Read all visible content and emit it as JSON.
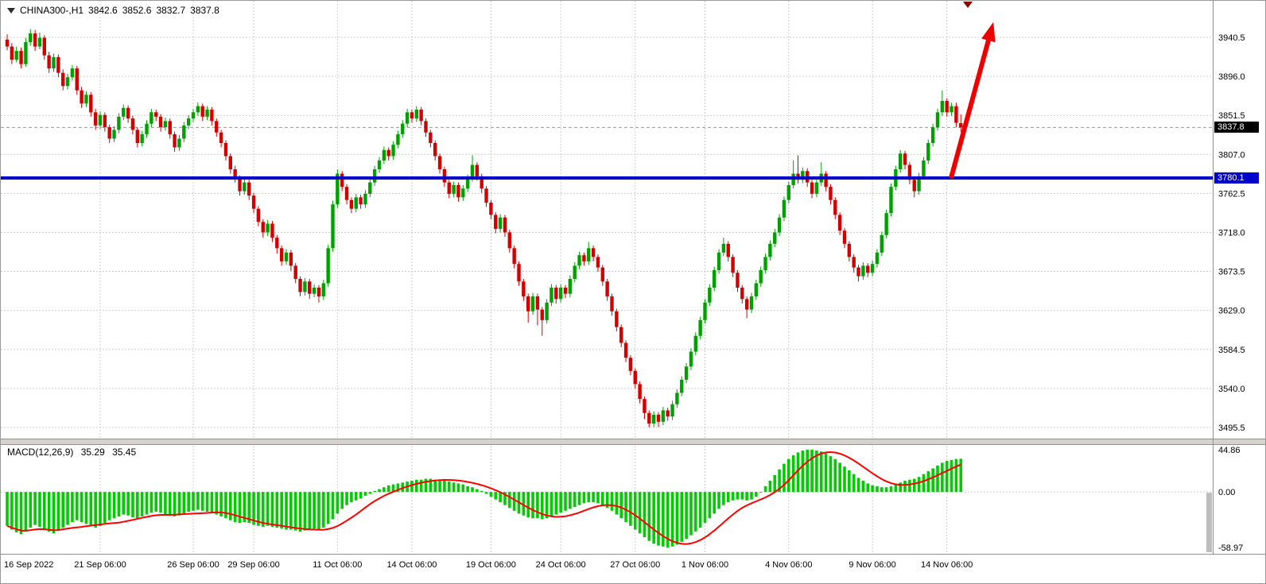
{
  "header": {
    "title": "CHINA300-,H1",
    "open": "3842.6",
    "high": "3852.6",
    "low": "3832.7",
    "close": "3837.8"
  },
  "indicator_label": {
    "name": "MACD(12,26,9)",
    "macd_value": "35.29",
    "signal_value": "35.45"
  },
  "tags": {
    "current_price": "3837.8",
    "support_price": "3780.1"
  },
  "colors": {
    "bull": "#00A000",
    "bear": "#D40000",
    "histogram": "#00CC00",
    "signal_line": "#FF0000",
    "support_line": "#0000CD",
    "arrow": "#EE0000",
    "grid": "#CDCDCD",
    "axis_line": "#909090",
    "axis_text": "#000000",
    "last_price_line": "#9a9a9a",
    "tag_current_bg": "#000000",
    "tag_support_bg": "#0000CD",
    "separator": "#D6D3CE",
    "marker": "#8B0000",
    "scrollbar": "#BDBDBD"
  },
  "chart_data": {
    "type": "candlestick",
    "title": "CHINA300-,H1",
    "timeframe": "H1",
    "price_axis_labels": [
      "3940.5",
      "3896.0",
      "3851.5",
      "3807.0",
      "3762.5",
      "3718.0",
      "3673.5",
      "3629.0",
      "3584.5",
      "3540.0",
      "3495.5"
    ],
    "time_axis_labels": [
      {
        "i": 0,
        "label": "16 Sep 2022"
      },
      {
        "i": 20,
        "label": "21 Sep 06:00"
      },
      {
        "i": 40,
        "label": "26 Sep 06:00"
      },
      {
        "i": 53,
        "label": "29 Sep 06:00"
      },
      {
        "i": 71,
        "label": "11 Oct 06:00"
      },
      {
        "i": 87,
        "label": "14 Oct 06:00"
      },
      {
        "i": 104,
        "label": "19 Oct 06:00"
      },
      {
        "i": 119,
        "label": "24 Oct 06:00"
      },
      {
        "i": 135,
        "label": "27 Oct 06:00"
      },
      {
        "i": 150,
        "label": "1 Nov 06:00"
      },
      {
        "i": 168,
        "label": "4 Nov 06:00"
      },
      {
        "i": 186,
        "label": "9 Nov 06:00"
      },
      {
        "i": 202,
        "label": "14 Nov 06:00"
      }
    ],
    "ohlc": [
      [
        3938,
        3944,
        3926,
        3930
      ],
      [
        3930,
        3934,
        3910,
        3915
      ],
      [
        3915,
        3930,
        3912,
        3925
      ],
      [
        3925,
        3929,
        3905,
        3910
      ],
      [
        3910,
        3940,
        3907,
        3935
      ],
      [
        3935,
        3950,
        3931,
        3945
      ],
      [
        3945,
        3949,
        3925,
        3930
      ],
      [
        3930,
        3946,
        3927,
        3940
      ],
      [
        3940,
        3943,
        3915,
        3920
      ],
      [
        3920,
        3924,
        3900,
        3905
      ],
      [
        3905,
        3922,
        3901,
        3918
      ],
      [
        3918,
        3921,
        3895,
        3900
      ],
      [
        3900,
        3904,
        3880,
        3885
      ],
      [
        3885,
        3899,
        3881,
        3895
      ],
      [
        3895,
        3909,
        3891,
        3905
      ],
      [
        3905,
        3908,
        3875,
        3880
      ],
      [
        3880,
        3884,
        3860,
        3865
      ],
      [
        3865,
        3879,
        3861,
        3875
      ],
      [
        3875,
        3878,
        3850,
        3855
      ],
      [
        3855,
        3859,
        3835,
        3840
      ],
      [
        3840,
        3856,
        3836,
        3852
      ],
      [
        3852,
        3855,
        3833,
        3838
      ],
      [
        3838,
        3841,
        3820,
        3825
      ],
      [
        3825,
        3839,
        3821,
        3835
      ],
      [
        3835,
        3854,
        3831,
        3850
      ],
      [
        3850,
        3864,
        3846,
        3860
      ],
      [
        3860,
        3863,
        3843,
        3848
      ],
      [
        3848,
        3851,
        3830,
        3835
      ],
      [
        3835,
        3838,
        3815,
        3820
      ],
      [
        3820,
        3834,
        3816,
        3830
      ],
      [
        3830,
        3846,
        3826,
        3842
      ],
      [
        3842,
        3859,
        3838,
        3855
      ],
      [
        3855,
        3858,
        3845,
        3850
      ],
      [
        3850,
        3853,
        3833,
        3838
      ],
      [
        3838,
        3849,
        3834,
        3845
      ],
      [
        3845,
        3848,
        3825,
        3830
      ],
      [
        3830,
        3833,
        3810,
        3815
      ],
      [
        3815,
        3829,
        3811,
        3825
      ],
      [
        3825,
        3844,
        3821,
        3840
      ],
      [
        3840,
        3852,
        3836,
        3848
      ],
      [
        3848,
        3859,
        3844,
        3855
      ],
      [
        3855,
        3866,
        3851,
        3862
      ],
      [
        3862,
        3865,
        3845,
        3850
      ],
      [
        3850,
        3862,
        3846,
        3858
      ],
      [
        3858,
        3861,
        3840,
        3845
      ],
      [
        3845,
        3848,
        3827,
        3832
      ],
      [
        3832,
        3835,
        3815,
        3820
      ],
      [
        3820,
        3823,
        3800,
        3805
      ],
      [
        3805,
        3808,
        3785,
        3790
      ],
      [
        3790,
        3794,
        3775,
        3780
      ],
      [
        3780,
        3783,
        3760,
        3765
      ],
      [
        3765,
        3779,
        3761,
        3775
      ],
      [
        3775,
        3778,
        3755,
        3760
      ],
      [
        3760,
        3763,
        3740,
        3745
      ],
      [
        3745,
        3748,
        3725,
        3730
      ],
      [
        3730,
        3733,
        3712,
        3718
      ],
      [
        3718,
        3732,
        3714,
        3728
      ],
      [
        3728,
        3731,
        3707,
        3712
      ],
      [
        3712,
        3715,
        3694,
        3700
      ],
      [
        3700,
        3703,
        3680,
        3685
      ],
      [
        3685,
        3699,
        3681,
        3695
      ],
      [
        3695,
        3698,
        3674,
        3680
      ],
      [
        3680,
        3683,
        3660,
        3665
      ],
      [
        3665,
        3668,
        3645,
        3650
      ],
      [
        3650,
        3666,
        3646,
        3662
      ],
      [
        3662,
        3665,
        3642,
        3648
      ],
      [
        3648,
        3659,
        3644,
        3655
      ],
      [
        3655,
        3658,
        3638,
        3645
      ],
      [
        3645,
        3664,
        3641,
        3660
      ],
      [
        3660,
        3704,
        3656,
        3700
      ],
      [
        3700,
        3754,
        3696,
        3750
      ],
      [
        3750,
        3790,
        3746,
        3785
      ],
      [
        3785,
        3788,
        3765,
        3770
      ],
      [
        3770,
        3773,
        3750,
        3755
      ],
      [
        3755,
        3758,
        3740,
        3745
      ],
      [
        3745,
        3762,
        3741,
        3758
      ],
      [
        3758,
        3761,
        3745,
        3750
      ],
      [
        3750,
        3766,
        3746,
        3762
      ],
      [
        3762,
        3779,
        3758,
        3775
      ],
      [
        3775,
        3794,
        3771,
        3790
      ],
      [
        3790,
        3804,
        3786,
        3800
      ],
      [
        3800,
        3816,
        3796,
        3812
      ],
      [
        3812,
        3815,
        3800,
        3805
      ],
      [
        3805,
        3822,
        3801,
        3818
      ],
      [
        3818,
        3834,
        3814,
        3830
      ],
      [
        3830,
        3846,
        3826,
        3842
      ],
      [
        3842,
        3859,
        3838,
        3855
      ],
      [
        3855,
        3858,
        3843,
        3848
      ],
      [
        3848,
        3862,
        3844,
        3858
      ],
      [
        3858,
        3861,
        3840,
        3845
      ],
      [
        3845,
        3848,
        3827,
        3832
      ],
      [
        3832,
        3835,
        3815,
        3820
      ],
      [
        3820,
        3823,
        3800,
        3805
      ],
      [
        3805,
        3808,
        3785,
        3790
      ],
      [
        3790,
        3793,
        3770,
        3775
      ],
      [
        3775,
        3778,
        3757,
        3762
      ],
      [
        3762,
        3776,
        3758,
        3772
      ],
      [
        3772,
        3775,
        3753,
        3758
      ],
      [
        3758,
        3772,
        3754,
        3768
      ],
      [
        3768,
        3784,
        3764,
        3780
      ],
      [
        3780,
        3806,
        3776,
        3795
      ],
      [
        3795,
        3798,
        3777,
        3782
      ],
      [
        3782,
        3785,
        3763,
        3768
      ],
      [
        3768,
        3771,
        3747,
        3752
      ],
      [
        3752,
        3755,
        3733,
        3738
      ],
      [
        3738,
        3741,
        3717,
        3722
      ],
      [
        3722,
        3739,
        3718,
        3735
      ],
      [
        3735,
        3738,
        3713,
        3718
      ],
      [
        3718,
        3721,
        3695,
        3700
      ],
      [
        3700,
        3703,
        3677,
        3682
      ],
      [
        3682,
        3685,
        3657,
        3662
      ],
      [
        3662,
        3665,
        3640,
        3645
      ],
      [
        3645,
        3648,
        3615,
        3628
      ],
      [
        3628,
        3649,
        3624,
        3645
      ],
      [
        3645,
        3648,
        3612,
        3630
      ],
      [
        3630,
        3633,
        3600,
        3618
      ],
      [
        3618,
        3642,
        3614,
        3638
      ],
      [
        3638,
        3659,
        3634,
        3655
      ],
      [
        3655,
        3658,
        3637,
        3642
      ],
      [
        3642,
        3659,
        3638,
        3655
      ],
      [
        3655,
        3658,
        3643,
        3648
      ],
      [
        3648,
        3669,
        3644,
        3665
      ],
      [
        3665,
        3684,
        3661,
        3680
      ],
      [
        3680,
        3696,
        3676,
        3692
      ],
      [
        3692,
        3695,
        3680,
        3685
      ],
      [
        3685,
        3707,
        3681,
        3700
      ],
      [
        3700,
        3703,
        3685,
        3690
      ],
      [
        3690,
        3693,
        3673,
        3678
      ],
      [
        3678,
        3681,
        3657,
        3662
      ],
      [
        3662,
        3665,
        3640,
        3645
      ],
      [
        3645,
        3648,
        3623,
        3628
      ],
      [
        3628,
        3631,
        3605,
        3610
      ],
      [
        3610,
        3613,
        3587,
        3592
      ],
      [
        3592,
        3595,
        3570,
        3575
      ],
      [
        3575,
        3578,
        3555,
        3560
      ],
      [
        3560,
        3563,
        3540,
        3545
      ],
      [
        3545,
        3548,
        3523,
        3528
      ],
      [
        3528,
        3531,
        3505,
        3512
      ],
      [
        3512,
        3515,
        3495.5,
        3500
      ],
      [
        3500,
        3514,
        3496,
        3510
      ],
      [
        3510,
        3513,
        3496,
        3502
      ],
      [
        3502,
        3519,
        3498,
        3515
      ],
      [
        3515,
        3518,
        3503,
        3508
      ],
      [
        3508,
        3526,
        3504,
        3522
      ],
      [
        3522,
        3539,
        3518,
        3535
      ],
      [
        3535,
        3554,
        3531,
        3550
      ],
      [
        3550,
        3569,
        3546,
        3565
      ],
      [
        3565,
        3586,
        3561,
        3582
      ],
      [
        3582,
        3604,
        3578,
        3600
      ],
      [
        3600,
        3622,
        3596,
        3618
      ],
      [
        3618,
        3642,
        3614,
        3638
      ],
      [
        3638,
        3659,
        3634,
        3655
      ],
      [
        3655,
        3679,
        3651,
        3675
      ],
      [
        3675,
        3699,
        3671,
        3695
      ],
      [
        3695,
        3712,
        3691,
        3705
      ],
      [
        3705,
        3708,
        3685,
        3690
      ],
      [
        3690,
        3693,
        3667,
        3672
      ],
      [
        3672,
        3675,
        3650,
        3655
      ],
      [
        3655,
        3658,
        3637,
        3642
      ],
      [
        3642,
        3645,
        3620,
        3630
      ],
      [
        3630,
        3649,
        3626,
        3645
      ],
      [
        3645,
        3664,
        3641,
        3660
      ],
      [
        3660,
        3679,
        3656,
        3675
      ],
      [
        3675,
        3694,
        3671,
        3690
      ],
      [
        3690,
        3709,
        3686,
        3705
      ],
      [
        3705,
        3722,
        3701,
        3718
      ],
      [
        3718,
        3739,
        3714,
        3735
      ],
      [
        3735,
        3759,
        3731,
        3755
      ],
      [
        3755,
        3776,
        3751,
        3772
      ],
      [
        3772,
        3800,
        3768,
        3785
      ],
      [
        3785,
        3806,
        3774,
        3778
      ],
      [
        3778,
        3792,
        3774,
        3788
      ],
      [
        3788,
        3791,
        3770,
        3775
      ],
      [
        3775,
        3778,
        3757,
        3762
      ],
      [
        3762,
        3779,
        3758,
        3775
      ],
      [
        3775,
        3798,
        3771,
        3785
      ],
      [
        3785,
        3788,
        3765,
        3770
      ],
      [
        3770,
        3773,
        3750,
        3755
      ],
      [
        3755,
        3758,
        3733,
        3738
      ],
      [
        3738,
        3741,
        3715,
        3720
      ],
      [
        3720,
        3723,
        3700,
        3705
      ],
      [
        3705,
        3708,
        3685,
        3690
      ],
      [
        3690,
        3693,
        3672,
        3678
      ],
      [
        3678,
        3681,
        3662,
        3668
      ],
      [
        3668,
        3684,
        3664,
        3680
      ],
      [
        3680,
        3683,
        3667,
        3672
      ],
      [
        3672,
        3686,
        3668,
        3682
      ],
      [
        3682,
        3699,
        3678,
        3695
      ],
      [
        3695,
        3719,
        3691,
        3715
      ],
      [
        3715,
        3744,
        3711,
        3740
      ],
      [
        3740,
        3774,
        3736,
        3770
      ],
      [
        3770,
        3794,
        3766,
        3790
      ],
      [
        3790,
        3812,
        3786,
        3808
      ],
      [
        3808,
        3811,
        3790,
        3795
      ],
      [
        3795,
        3798,
        3773,
        3778
      ],
      [
        3778,
        3781,
        3758,
        3765
      ],
      [
        3765,
        3786,
        3761,
        3782
      ],
      [
        3782,
        3804,
        3778,
        3800
      ],
      [
        3800,
        3824,
        3796,
        3820
      ],
      [
        3820,
        3842,
        3816,
        3838
      ],
      [
        3838,
        3859,
        3834,
        3855
      ],
      [
        3855,
        3880,
        3851,
        3868
      ],
      [
        3868,
        3871,
        3850,
        3855
      ],
      [
        3855,
        3866,
        3851,
        3862
      ],
      [
        3862,
        3866,
        3838,
        3843
      ],
      [
        3842.6,
        3852.6,
        3832.7,
        3837.8
      ]
    ],
    "macd": {
      "type": "bar+line",
      "label": "MACD(12,26,9)",
      "axis_labels": [
        "44.86",
        "0.00",
        "-58.97"
      ],
      "signal_sma_period": 9,
      "current_macd": 35.29,
      "current_signal": 35.45,
      "histogram": [
        -36,
        -40,
        -43,
        -45,
        -42,
        -38,
        -35,
        -37,
        -40,
        -42,
        -44,
        -41,
        -38,
        -35,
        -32,
        -30,
        -32,
        -34,
        -36,
        -38,
        -36,
        -33,
        -30,
        -28,
        -26,
        -24,
        -25,
        -27,
        -28,
        -26,
        -24,
        -22,
        -21,
        -22,
        -24,
        -25,
        -26,
        -25,
        -23,
        -21,
        -20,
        -19,
        -20,
        -21,
        -22,
        -24,
        -26,
        -28,
        -30,
        -32,
        -33,
        -32,
        -33,
        -35,
        -36,
        -37,
        -36,
        -37,
        -38,
        -39,
        -40,
        -40,
        -41,
        -42,
        -41,
        -40,
        -39,
        -40,
        -38,
        -34,
        -29,
        -23,
        -18,
        -14,
        -11,
        -9,
        -7,
        -4,
        -2,
        1,
        3,
        5,
        7,
        8,
        9,
        10,
        11,
        12,
        13,
        13,
        14,
        14,
        13,
        13,
        12,
        11,
        10,
        9,
        8,
        6,
        5,
        3,
        1,
        -2,
        -5,
        -8,
        -11,
        -14,
        -17,
        -20,
        -23,
        -25,
        -27,
        -28,
        -28,
        -29,
        -28,
        -26,
        -24,
        -22,
        -20,
        -18,
        -16,
        -14,
        -12,
        -11,
        -11,
        -12,
        -14,
        -17,
        -20,
        -24,
        -28,
        -32,
        -36,
        -40,
        -44,
        -48,
        -52,
        -55,
        -57,
        -58,
        -59,
        -58,
        -56,
        -53,
        -50,
        -46,
        -42,
        -38,
        -33,
        -28,
        -23,
        -18,
        -14,
        -11,
        -9,
        -8,
        -8,
        -9,
        -8,
        -5,
        0,
        6,
        12,
        18,
        24,
        30,
        35,
        39,
        42,
        44,
        45,
        45,
        44,
        43,
        41,
        38,
        35,
        31,
        27,
        23,
        19,
        15,
        12,
        9,
        7,
        6,
        5,
        5,
        6,
        8,
        10,
        12,
        13,
        14,
        16,
        19,
        22,
        25,
        28,
        31,
        33,
        34,
        35,
        35.29
      ]
    },
    "objects": {
      "support_line_price": 3780.1,
      "last_price": 3837.8,
      "arrow": {
        "from_i": 203,
        "from_price": 3782,
        "to_i": 212,
        "to_price": 3958
      },
      "top_marker_i": 206.5
    }
  }
}
